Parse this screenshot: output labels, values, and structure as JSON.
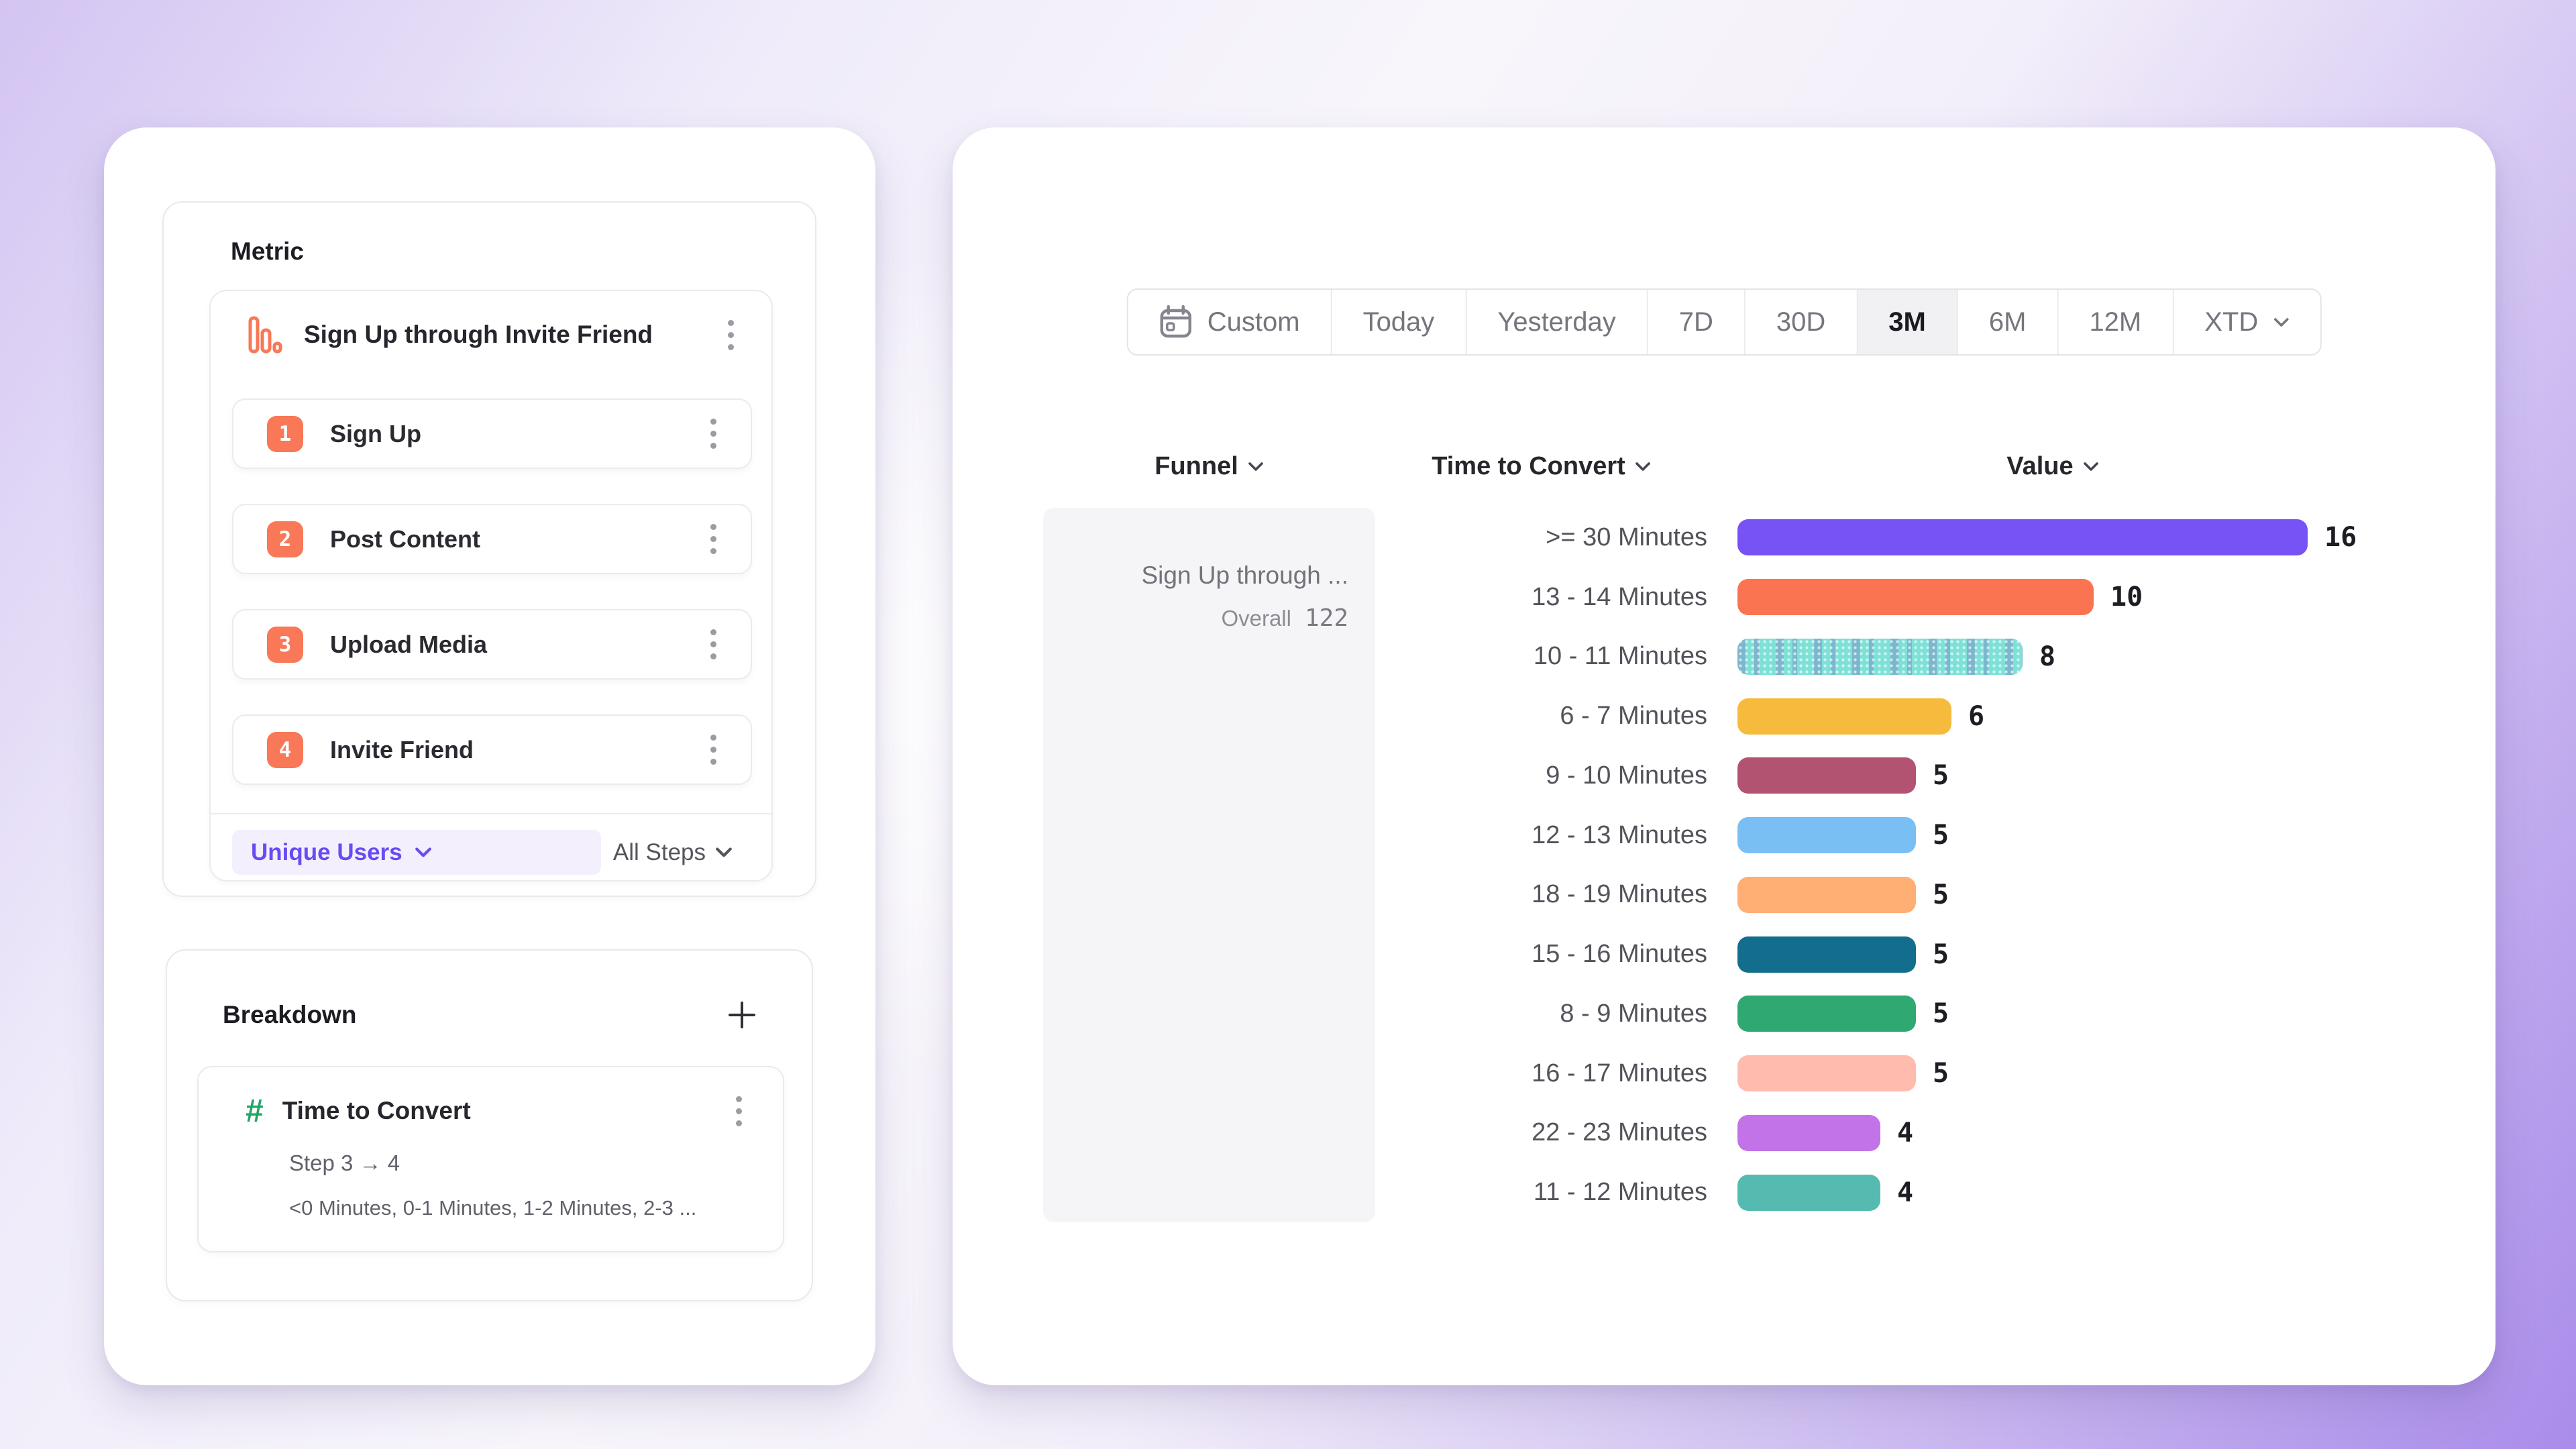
{
  "left_panel": {
    "metric_section": {
      "title": "Metric",
      "funnel_item": {
        "icon": "bar-chart-icon",
        "name": "Sign Up through Invite Friend",
        "steps": [
          {
            "number": "1",
            "label": "Sign Up"
          },
          {
            "number": "2",
            "label": "Post Content"
          },
          {
            "number": "3",
            "label": "Upload Media"
          },
          {
            "number": "4",
            "label": "Invite Friend"
          }
        ],
        "counting_dropdown": "Unique Users",
        "steps_dropdown": "All Steps"
      }
    },
    "breakdown_section": {
      "title": "Breakdown",
      "add_button": "plus-icon",
      "item": {
        "icon": "hash-icon",
        "name": "Time to Convert",
        "step_range": "Step 3 → 4",
        "buckets_preview": "<0 Minutes, 0-1 Minutes, 1-2 Minutes, 2-3 ..."
      }
    }
  },
  "right_panel": {
    "date_range": {
      "options": [
        "Custom",
        "Today",
        "Yesterday",
        "7D",
        "30D",
        "3M",
        "6M",
        "12M",
        "XTD"
      ],
      "selected": "3M",
      "calendar_icon_option": "Custom",
      "chevron_option": "XTD"
    },
    "columns": {
      "funnel": "Funnel",
      "time_to_convert": "Time to Convert",
      "value": "Value"
    },
    "funnel_cell": {
      "name": "Sign Up through ...",
      "overall_label": "Overall",
      "overall_value": "122"
    }
  },
  "chart_data": {
    "type": "bar",
    "orientation": "horizontal",
    "title": "",
    "xlabel": "Value",
    "ylabel": "Time to Convert",
    "categories": [
      ">= 30 Minutes",
      "13 - 14 Minutes",
      "10 - 11 Minutes",
      "6 - 7 Minutes",
      "9 - 10 Minutes",
      "12 - 13 Minutes",
      "18 - 19 Minutes",
      "15 - 16 Minutes",
      "8 - 9 Minutes",
      "16 - 17 Minutes",
      "22 - 23 Minutes",
      "11 - 12 Minutes"
    ],
    "values": [
      16,
      10,
      8,
      6,
      5,
      5,
      5,
      5,
      5,
      5,
      4,
      4
    ],
    "colors": [
      "#7752F4",
      "#FB7452",
      "#7EE1D8",
      "#F6BB3C",
      "#B25371",
      "#79BFF4",
      "#FFAE74",
      "#136D8D",
      "#2FA872",
      "#FFBBAE",
      "#C273E8",
      "#55BBB1"
    ],
    "patterned_rows": [
      2
    ],
    "xlim": [
      0,
      16
    ],
    "grid": false,
    "legend_position": "none"
  }
}
